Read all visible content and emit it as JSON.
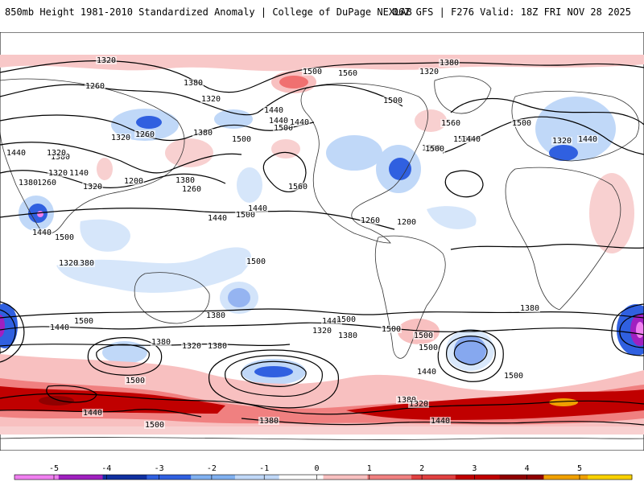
{
  "header": {
    "title_left": "850mb Height 1981-2010 Standardized Anomaly | College of DuPage NEXLAB",
    "title_right": "06Z GFS | F276 Valid: 18Z FRI NOV 28 2025"
  },
  "map": {
    "contour_labels": [
      "1320",
      "1260",
      "1380",
      "1320",
      "1500",
      "1560",
      "1380",
      "1320",
      "1440",
      "1500",
      "1260",
      "1440",
      "1380",
      "1440",
      "1500",
      "1560",
      "1500",
      "1500",
      "1500",
      "1500",
      "1440",
      "1320",
      "1500",
      "1440",
      "1380",
      "1320",
      "1260",
      "1140",
      "1200",
      "1260",
      "1560",
      "1380",
      "1320",
      "1440",
      "1320",
      "1500",
      "1440",
      "1440",
      "1260",
      "1200",
      "1380",
      "1320",
      "1380",
      "1440",
      "1500",
      "1320",
      "1500",
      "1380",
      "1440",
      "1500",
      "1440",
      "1500",
      "1380",
      "1320",
      "1380",
      "1320",
      "1380",
      "1500",
      "1500",
      "1500",
      "1440",
      "1380",
      "1320",
      "1440",
      "1380",
      "1500",
      "1440",
      "1500",
      "1500",
      "1380"
    ]
  },
  "colorbar": {
    "ticks": [
      "-5",
      "-4",
      "-3",
      "-2",
      "-1",
      "0",
      "1",
      "2",
      "3",
      "4",
      "5"
    ],
    "colors": [
      "#f080f0",
      "#a020c0",
      "#1030a0",
      "#3060e0",
      "#80b0f0",
      "#c0d8f8",
      "#ffffff",
      "#f8c0c0",
      "#f08080",
      "#e04040",
      "#c00000",
      "#900000",
      "#f0a000",
      "#f8d000"
    ]
  }
}
